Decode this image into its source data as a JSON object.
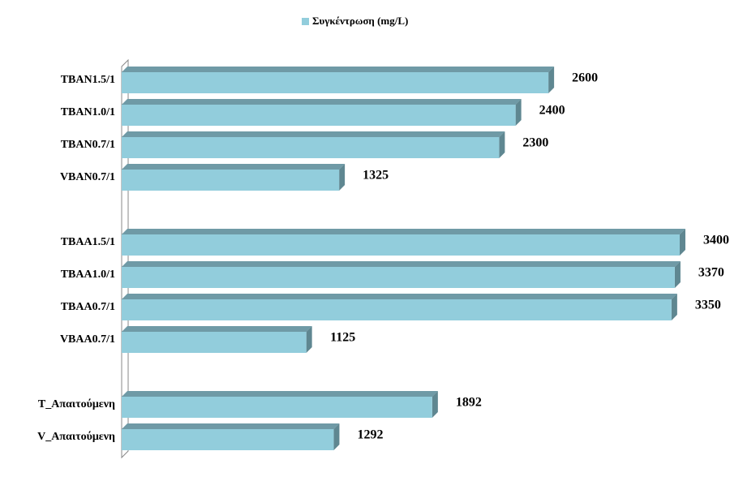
{
  "chart_data": {
    "type": "bar",
    "orientation": "horizontal",
    "categories": [
      "TBAN1.5/1",
      "TBAN1.0/1",
      "TBAN0.7/1",
      "VBAN0.7/1",
      null,
      "TBAA1.5/1",
      "TBAA1.0/1",
      "TBAA0.7/1",
      "VBAA0.7/1",
      null,
      "T_Απαιτούμενη",
      "V_Απαιτούμενη"
    ],
    "series": [
      {
        "name": "Συγκέντρωση (mg/L)",
        "color": "#92cddc",
        "values": [
          2600,
          2400,
          2300,
          1325,
          null,
          3400,
          3370,
          3350,
          1125,
          null,
          1892,
          1292
        ]
      }
    ],
    "legend": "top"
  }
}
